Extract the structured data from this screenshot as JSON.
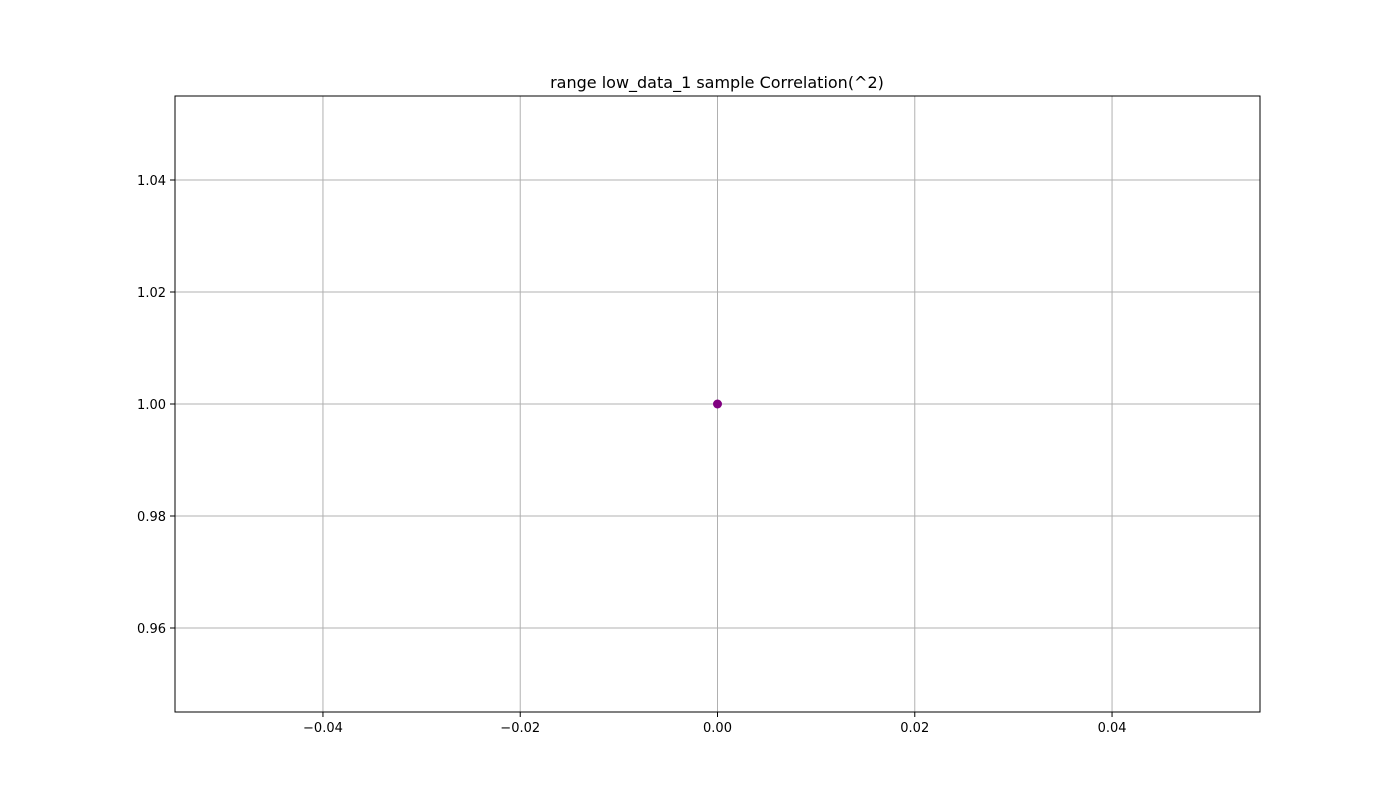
{
  "chart_data": {
    "type": "scatter",
    "title": "range low_data_1 sample Correlation(^2)",
    "xlabel": "",
    "ylabel": "",
    "xlim": [
      -0.055,
      0.055
    ],
    "ylim": [
      0.945,
      1.055
    ],
    "grid": true,
    "x_ticks": [
      -0.04,
      -0.02,
      0.0,
      0.02,
      0.04
    ],
    "x_tick_labels": [
      "−0.04",
      "−0.02",
      "0.00",
      "0.02",
      "0.04"
    ],
    "y_ticks": [
      0.96,
      0.98,
      1.0,
      1.02,
      1.04
    ],
    "y_tick_labels": [
      "0.96",
      "0.98",
      "1.00",
      "1.02",
      "1.04"
    ],
    "series": [
      {
        "x": [
          0.0
        ],
        "y": [
          1.0
        ],
        "color": "#800080",
        "marker": "circle"
      }
    ]
  }
}
